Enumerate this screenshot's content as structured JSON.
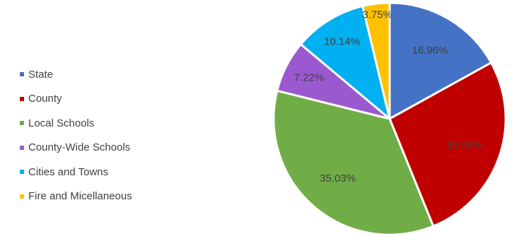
{
  "chart_data": {
    "type": "pie",
    "categories": [
      "State",
      "County",
      "Local Schools",
      "County-Wide Schools",
      "Cities and Towns",
      "Fire and Micellaneous"
    ],
    "values": [
      16.96,
      26.9,
      35.03,
      7.22,
      10.14,
      3.75
    ],
    "value_labels": [
      "16.96%",
      "26.90%",
      "35.03%",
      "7.22%",
      "10.14%",
      "3.75%"
    ],
    "colors": [
      "#4472c4",
      "#c00000",
      "#70ad47",
      "#9b59d0",
      "#00b0f0",
      "#ffc000"
    ],
    "start_angle": "12 o'clock",
    "direction": "clockwise",
    "legend_position": "left"
  }
}
